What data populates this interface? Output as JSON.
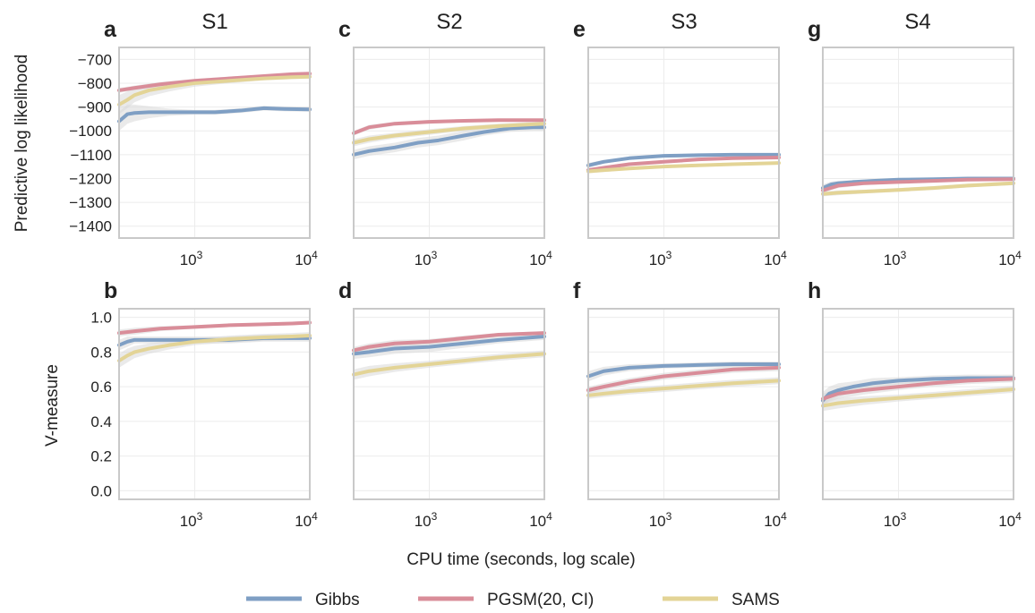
{
  "colors": {
    "gibbs": "#7f9fc4",
    "pgsm": "#d98d99",
    "sams": "#e3d496",
    "band": "#d8d8d8",
    "frame": "#c9c9c9",
    "grid": "#ececec"
  },
  "figure": {
    "xlabel": "CPU time (seconds, log scale)",
    "row_ylabels": [
      "Predictive log likelihood",
      "V-measure"
    ],
    "column_titles": [
      "S1",
      "S2",
      "S3",
      "S4"
    ],
    "x_ticks": [
      {
        "value": 1000,
        "base": "10",
        "exp": "3"
      },
      {
        "value": 10000,
        "base": "10",
        "exp": "4"
      }
    ]
  },
  "legend": {
    "items": [
      {
        "label": "Gibbs",
        "color": "#7f9fc4"
      },
      {
        "label": "PGSM(20, CI)",
        "color": "#d98d99"
      },
      {
        "label": "SAMS",
        "color": "#e3d496"
      }
    ]
  },
  "chart_data": [
    {
      "type": "line",
      "panel": "a",
      "title": "S1",
      "row": 0,
      "col": 0,
      "xscale": "log",
      "xlim": [
        220,
        10000
      ],
      "ylim": [
        -1450,
        -650
      ],
      "y_ticks": [
        "−700",
        "−800",
        "−900",
        "−1000",
        "−1100",
        "−1200",
        "−1300",
        "−1400"
      ],
      "y_tick_values": [
        -700,
        -800,
        -900,
        -1000,
        -1100,
        -1200,
        -1300,
        -1400
      ],
      "series": [
        {
          "name": "Gibbs",
          "x": [
            220,
            260,
            300,
            400,
            600,
            1000,
            1500,
            2500,
            4000,
            6000,
            10000
          ],
          "y": [
            -960,
            -930,
            -925,
            -922,
            -922,
            -922,
            -922,
            -915,
            -905,
            -908,
            -910
          ],
          "band": [
            40,
            40,
            35,
            25,
            15,
            10,
            10,
            10,
            10,
            10,
            10
          ]
        },
        {
          "name": "PGSM(20, CI)",
          "x": [
            220,
            300,
            500,
            1000,
            2000,
            4000,
            7000,
            10000
          ],
          "y": [
            -830,
            -820,
            -805,
            -790,
            -780,
            -770,
            -762,
            -760
          ],
          "band": [
            10,
            10,
            10,
            8,
            8,
            6,
            6,
            6
          ]
        },
        {
          "name": "SAMS",
          "x": [
            220,
            260,
            300,
            400,
            600,
            1000,
            2000,
            4000,
            7000,
            10000
          ],
          "y": [
            -890,
            -870,
            -850,
            -830,
            -815,
            -800,
            -790,
            -780,
            -775,
            -773
          ],
          "band": [
            40,
            35,
            30,
            25,
            20,
            15,
            10,
            8,
            8,
            8
          ]
        }
      ]
    },
    {
      "type": "line",
      "panel": "c",
      "title": "S2",
      "row": 0,
      "col": 1,
      "xscale": "log",
      "xlim": [
        220,
        10000
      ],
      "ylim": [
        -1450,
        -650
      ],
      "y_ticks": [],
      "y_tick_values": [
        -700,
        -800,
        -900,
        -1000,
        -1100,
        -1200,
        -1300,
        -1400
      ],
      "series": [
        {
          "name": "Gibbs",
          "x": [
            220,
            300,
            500,
            800,
            1200,
            2000,
            3000,
            5000,
            8000,
            10000
          ],
          "y": [
            -1100,
            -1085,
            -1070,
            -1050,
            -1040,
            -1020,
            -1005,
            -990,
            -985,
            -985
          ],
          "band": [
            20,
            20,
            20,
            20,
            20,
            20,
            15,
            15,
            15,
            15
          ]
        },
        {
          "name": "PGSM(20, CI)",
          "x": [
            220,
            300,
            500,
            1000,
            2000,
            4000,
            10000
          ],
          "y": [
            -1010,
            -985,
            -970,
            -962,
            -958,
            -955,
            -955
          ],
          "band": [
            10,
            10,
            8,
            8,
            6,
            6,
            6
          ]
        },
        {
          "name": "SAMS",
          "x": [
            220,
            300,
            500,
            1000,
            2000,
            4000,
            10000
          ],
          "y": [
            -1050,
            -1035,
            -1020,
            -1005,
            -990,
            -980,
            -970
          ],
          "band": [
            15,
            15,
            12,
            12,
            10,
            10,
            10
          ]
        }
      ]
    },
    {
      "type": "line",
      "panel": "e",
      "title": "S3",
      "row": 0,
      "col": 2,
      "xscale": "log",
      "xlim": [
        220,
        10000
      ],
      "ylim": [
        -1450,
        -650
      ],
      "y_ticks": [],
      "y_tick_values": [
        -700,
        -800,
        -900,
        -1000,
        -1100,
        -1200,
        -1300,
        -1400
      ],
      "series": [
        {
          "name": "Gibbs",
          "x": [
            220,
            300,
            500,
            1000,
            2000,
            4000,
            10000
          ],
          "y": [
            -1145,
            -1130,
            -1115,
            -1105,
            -1102,
            -1100,
            -1100
          ],
          "band": [
            10,
            8,
            6,
            6,
            6,
            6,
            6
          ]
        },
        {
          "name": "PGSM(20, CI)",
          "x": [
            220,
            300,
            500,
            1000,
            2000,
            4000,
            10000
          ],
          "y": [
            -1165,
            -1155,
            -1140,
            -1130,
            -1120,
            -1115,
            -1112
          ],
          "band": [
            8,
            8,
            6,
            6,
            6,
            6,
            6
          ]
        },
        {
          "name": "SAMS",
          "x": [
            220,
            300,
            500,
            1000,
            2000,
            4000,
            10000
          ],
          "y": [
            -1170,
            -1165,
            -1158,
            -1150,
            -1145,
            -1140,
            -1135
          ],
          "band": [
            8,
            8,
            6,
            6,
            6,
            6,
            6
          ]
        }
      ]
    },
    {
      "type": "line",
      "panel": "g",
      "title": "S4",
      "row": 0,
      "col": 3,
      "xscale": "log",
      "xlim": [
        220,
        10000
      ],
      "ylim": [
        -1450,
        -650
      ],
      "y_ticks": [],
      "y_tick_values": [
        -700,
        -800,
        -900,
        -1000,
        -1100,
        -1200,
        -1300,
        -1400
      ],
      "series": [
        {
          "name": "Gibbs",
          "x": [
            220,
            260,
            300,
            400,
            600,
            1000,
            2000,
            4000,
            10000
          ],
          "y": [
            -1240,
            -1225,
            -1220,
            -1215,
            -1210,
            -1205,
            -1203,
            -1200,
            -1200
          ],
          "band": [
            15,
            12,
            10,
            8,
            8,
            6,
            6,
            6,
            6
          ]
        },
        {
          "name": "PGSM(20, CI)",
          "x": [
            220,
            300,
            500,
            1000,
            2000,
            4000,
            10000
          ],
          "y": [
            -1250,
            -1230,
            -1220,
            -1215,
            -1210,
            -1205,
            -1203
          ],
          "band": [
            10,
            10,
            8,
            6,
            6,
            6,
            6
          ]
        },
        {
          "name": "SAMS",
          "x": [
            220,
            300,
            500,
            1000,
            2000,
            4000,
            10000
          ],
          "y": [
            -1265,
            -1260,
            -1255,
            -1248,
            -1240,
            -1230,
            -1220
          ],
          "band": [
            10,
            10,
            8,
            8,
            8,
            8,
            8
          ]
        }
      ]
    },
    {
      "type": "line",
      "panel": "b",
      "title": "",
      "row": 1,
      "col": 0,
      "xscale": "log",
      "xlim": [
        220,
        10000
      ],
      "ylim": [
        -0.05,
        1.05
      ],
      "y_ticks": [
        "1.0",
        "0.8",
        "0.6",
        "0.4",
        "0.2",
        "0.0"
      ],
      "y_tick_values": [
        1.0,
        0.8,
        0.6,
        0.4,
        0.2,
        0.0
      ],
      "series": [
        {
          "name": "Gibbs",
          "x": [
            220,
            260,
            300,
            400,
            600,
            1000,
            2000,
            4000,
            7000,
            10000
          ],
          "y": [
            0.84,
            0.86,
            0.87,
            0.87,
            0.87,
            0.87,
            0.87,
            0.88,
            0.88,
            0.88
          ],
          "band": [
            0.03,
            0.03,
            0.02,
            0.02,
            0.02,
            0.02,
            0.02,
            0.02,
            0.02,
            0.02
          ]
        },
        {
          "name": "PGSM(20, CI)",
          "x": [
            220,
            300,
            500,
            1000,
            2000,
            4000,
            7000,
            10000
          ],
          "y": [
            0.91,
            0.92,
            0.935,
            0.945,
            0.955,
            0.96,
            0.965,
            0.97
          ],
          "band": [
            0.02,
            0.02,
            0.015,
            0.01,
            0.01,
            0.01,
            0.01,
            0.01
          ]
        },
        {
          "name": "SAMS",
          "x": [
            220,
            260,
            300,
            400,
            600,
            1000,
            2000,
            4000,
            7000,
            10000
          ],
          "y": [
            0.75,
            0.78,
            0.8,
            0.82,
            0.84,
            0.86,
            0.875,
            0.885,
            0.89,
            0.895
          ],
          "band": [
            0.04,
            0.04,
            0.035,
            0.03,
            0.025,
            0.02,
            0.02,
            0.02,
            0.02,
            0.02
          ]
        }
      ]
    },
    {
      "type": "line",
      "panel": "d",
      "title": "",
      "row": 1,
      "col": 1,
      "xscale": "log",
      "xlim": [
        220,
        10000
      ],
      "ylim": [
        -0.05,
        1.05
      ],
      "y_ticks": [],
      "y_tick_values": [
        1.0,
        0.8,
        0.6,
        0.4,
        0.2,
        0.0
      ],
      "series": [
        {
          "name": "Gibbs",
          "x": [
            220,
            300,
            500,
            1000,
            2000,
            4000,
            10000
          ],
          "y": [
            0.79,
            0.8,
            0.82,
            0.83,
            0.85,
            0.87,
            0.89
          ],
          "band": [
            0.03,
            0.03,
            0.03,
            0.03,
            0.025,
            0.02,
            0.02
          ]
        },
        {
          "name": "PGSM(20, CI)",
          "x": [
            220,
            300,
            500,
            1000,
            2000,
            4000,
            10000
          ],
          "y": [
            0.81,
            0.83,
            0.85,
            0.86,
            0.88,
            0.9,
            0.91
          ],
          "band": [
            0.02,
            0.02,
            0.02,
            0.015,
            0.015,
            0.01,
            0.01
          ]
        },
        {
          "name": "SAMS",
          "x": [
            220,
            300,
            500,
            1000,
            2000,
            4000,
            10000
          ],
          "y": [
            0.67,
            0.69,
            0.71,
            0.73,
            0.75,
            0.77,
            0.79
          ],
          "band": [
            0.03,
            0.03,
            0.025,
            0.02,
            0.02,
            0.02,
            0.02
          ]
        }
      ]
    },
    {
      "type": "line",
      "panel": "f",
      "title": "",
      "row": 1,
      "col": 2,
      "xscale": "log",
      "xlim": [
        220,
        10000
      ],
      "ylim": [
        -0.05,
        1.05
      ],
      "y_ticks": [],
      "y_tick_values": [
        1.0,
        0.8,
        0.6,
        0.4,
        0.2,
        0.0
      ],
      "series": [
        {
          "name": "Gibbs",
          "x": [
            220,
            300,
            500,
            1000,
            2000,
            4000,
            10000
          ],
          "y": [
            0.66,
            0.69,
            0.71,
            0.72,
            0.725,
            0.73,
            0.73
          ],
          "band": [
            0.03,
            0.025,
            0.02,
            0.015,
            0.015,
            0.015,
            0.015
          ]
        },
        {
          "name": "PGSM(20, CI)",
          "x": [
            220,
            300,
            500,
            1000,
            2000,
            4000,
            10000
          ],
          "y": [
            0.58,
            0.6,
            0.63,
            0.66,
            0.68,
            0.7,
            0.71
          ],
          "band": [
            0.02,
            0.02,
            0.02,
            0.02,
            0.02,
            0.02,
            0.02
          ]
        },
        {
          "name": "SAMS",
          "x": [
            220,
            300,
            500,
            1000,
            2000,
            4000,
            10000
          ],
          "y": [
            0.55,
            0.56,
            0.575,
            0.59,
            0.605,
            0.62,
            0.635
          ],
          "band": [
            0.02,
            0.02,
            0.02,
            0.02,
            0.02,
            0.02,
            0.02
          ]
        }
      ]
    },
    {
      "type": "line",
      "panel": "h",
      "title": "",
      "row": 1,
      "col": 3,
      "xscale": "log",
      "xlim": [
        220,
        10000
      ],
      "ylim": [
        -0.05,
        1.05
      ],
      "y_ticks": [],
      "y_tick_values": [
        1.0,
        0.8,
        0.6,
        0.4,
        0.2,
        0.0
      ],
      "series": [
        {
          "name": "Gibbs",
          "x": [
            220,
            250,
            300,
            400,
            600,
            1000,
            2000,
            4000,
            10000
          ],
          "y": [
            0.52,
            0.56,
            0.58,
            0.6,
            0.62,
            0.635,
            0.645,
            0.65,
            0.65
          ],
          "band": [
            0.05,
            0.04,
            0.04,
            0.03,
            0.03,
            0.02,
            0.02,
            0.02,
            0.02
          ]
        },
        {
          "name": "PGSM(20, CI)",
          "x": [
            220,
            300,
            500,
            1000,
            2000,
            4000,
            10000
          ],
          "y": [
            0.53,
            0.56,
            0.58,
            0.6,
            0.62,
            0.635,
            0.645
          ],
          "band": [
            0.03,
            0.03,
            0.025,
            0.02,
            0.02,
            0.02,
            0.02
          ]
        },
        {
          "name": "SAMS",
          "x": [
            220,
            300,
            500,
            1000,
            2000,
            4000,
            10000
          ],
          "y": [
            0.49,
            0.505,
            0.52,
            0.535,
            0.55,
            0.565,
            0.585
          ],
          "band": [
            0.03,
            0.03,
            0.025,
            0.02,
            0.02,
            0.02,
            0.02
          ]
        }
      ]
    }
  ]
}
